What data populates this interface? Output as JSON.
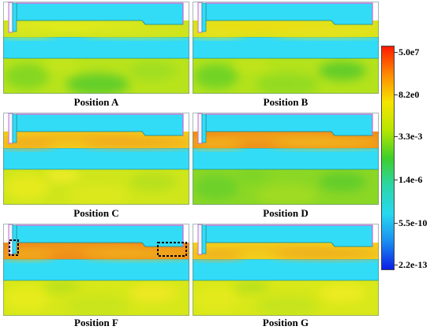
{
  "panels": [
    {
      "label": "Position A",
      "variant": "A"
    },
    {
      "label": "Position B",
      "variant": "B"
    },
    {
      "label": "Position C",
      "variant": "C"
    },
    {
      "label": "Position D",
      "variant": "D"
    },
    {
      "label": "Position F",
      "variant": "F"
    },
    {
      "label": "Position G",
      "variant": "G"
    }
  ],
  "colorbar": {
    "labels": [
      "5.0e7",
      "8.2e0",
      "3.3e-3",
      "1.4e-6",
      "5.5e-10",
      "2.2e-13"
    ],
    "colors": [
      "#ff1a00",
      "#ff8a00",
      "#f6e400",
      "#b8e600",
      "#3ecf2a",
      "#2bd6a8",
      "#27d8f0",
      "#1a8ef0",
      "#0a1ee8"
    ]
  },
  "colors": {
    "upper_block": "#33dcf6",
    "middle_band": "#33dcf6",
    "outline_pink": "#d062d6",
    "outline_dark": "#1a7f8c",
    "annotation_box": "#000000"
  }
}
